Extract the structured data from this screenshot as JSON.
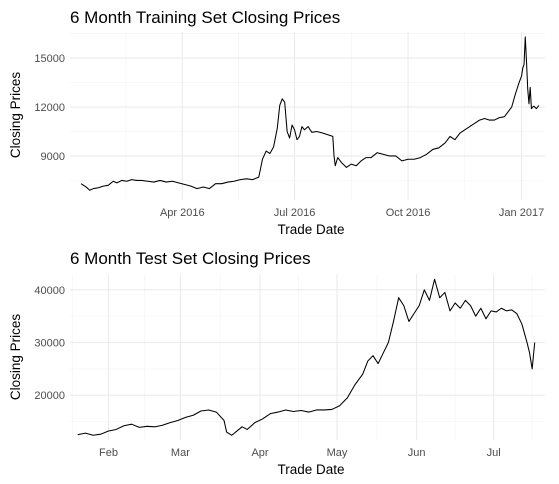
{
  "chart_data": [
    {
      "type": "line",
      "title": "6 Month Training Set Closing Prices",
      "xlabel": "Trade Date",
      "ylabel": "Closing Prices",
      "xlim": [
        "2016-01-01",
        "2017-01-20"
      ],
      "ylim": [
        6300,
        16600
      ],
      "x_ticks": [
        {
          "date": "2016-04-01",
          "label": "Apr 2016"
        },
        {
          "date": "2016-07-01",
          "label": "Jul 2016"
        },
        {
          "date": "2016-10-01",
          "label": "Oct 2016"
        },
        {
          "date": "2017-01-01",
          "label": "Jan 2017"
        }
      ],
      "y_ticks": [
        {
          "value": 9000,
          "label": "9000"
        },
        {
          "value": 12000,
          "label": "12000"
        },
        {
          "value": 15000,
          "label": "15000"
        }
      ],
      "grid": true,
      "x": [
        "2016-01-10",
        "2016-01-14",
        "2016-01-17",
        "2016-01-20",
        "2016-01-24",
        "2016-01-28",
        "2016-02-01",
        "2016-02-05",
        "2016-02-08",
        "2016-02-12",
        "2016-02-16",
        "2016-02-20",
        "2016-02-24",
        "2016-02-28",
        "2016-03-04",
        "2016-03-09",
        "2016-03-14",
        "2016-03-19",
        "2016-03-24",
        "2016-03-29",
        "2016-04-03",
        "2016-04-08",
        "2016-04-13",
        "2016-04-18",
        "2016-04-23",
        "2016-04-28",
        "2016-05-03",
        "2016-05-08",
        "2016-05-13",
        "2016-05-18",
        "2016-05-23",
        "2016-05-28",
        "2016-06-02",
        "2016-06-05",
        "2016-06-08",
        "2016-06-11",
        "2016-06-14",
        "2016-06-17",
        "2016-06-19",
        "2016-06-21",
        "2016-06-23",
        "2016-06-25",
        "2016-06-27",
        "2016-06-29",
        "2016-07-01",
        "2016-07-03",
        "2016-07-05",
        "2016-07-07",
        "2016-07-09",
        "2016-07-12",
        "2016-07-15",
        "2016-07-19",
        "2016-07-24",
        "2016-07-28",
        "2016-08-01",
        "2016-08-02",
        "2016-08-03",
        "2016-08-05",
        "2016-08-08",
        "2016-08-12",
        "2016-08-16",
        "2016-08-20",
        "2016-08-24",
        "2016-08-28",
        "2016-09-01",
        "2016-09-06",
        "2016-09-11",
        "2016-09-16",
        "2016-09-21",
        "2016-09-26",
        "2016-10-01",
        "2016-10-06",
        "2016-10-11",
        "2016-10-16",
        "2016-10-21",
        "2016-10-26",
        "2016-10-31",
        "2016-11-04",
        "2016-11-08",
        "2016-11-12",
        "2016-11-16",
        "2016-11-20",
        "2016-11-24",
        "2016-11-28",
        "2016-12-02",
        "2016-12-06",
        "2016-12-10",
        "2016-12-14",
        "2016-12-18",
        "2016-12-21",
        "2016-12-24",
        "2016-12-27",
        "2016-12-30",
        "2017-01-01",
        "2017-01-02",
        "2017-01-03",
        "2017-01-04",
        "2017-01-05",
        "2017-01-06",
        "2017-01-07",
        "2017-01-08",
        "2017-01-09",
        "2017-01-10",
        "2017-01-11",
        "2017-01-13",
        "2017-01-15"
      ],
      "values": [
        7300,
        7100,
        6900,
        7000,
        7050,
        7150,
        7200,
        7450,
        7350,
        7500,
        7450,
        7550,
        7500,
        7500,
        7450,
        7400,
        7500,
        7400,
        7450,
        7350,
        7250,
        7150,
        7000,
        7100,
        7000,
        7300,
        7300,
        7400,
        7450,
        7550,
        7600,
        7550,
        7700,
        8800,
        9300,
        9150,
        9550,
        10700,
        12100,
        12500,
        12300,
        10500,
        10100,
        10900,
        10600,
        10000,
        10200,
        10800,
        10600,
        10800,
        10450,
        10500,
        10400,
        10300,
        10200,
        9000,
        8400,
        8900,
        8600,
        8300,
        8500,
        8400,
        8700,
        8900,
        8900,
        9200,
        9100,
        9000,
        9000,
        8700,
        8800,
        8800,
        8900,
        9100,
        9400,
        9500,
        9800,
        10200,
        10000,
        10400,
        10600,
        10800,
        11000,
        11200,
        11300,
        11200,
        11200,
        11350,
        11400,
        11700,
        12000,
        12800,
        13500,
        13900,
        14400,
        14600,
        16300,
        14800,
        13100,
        12200,
        13200,
        11900,
        12000,
        12050,
        11900,
        12100
      ]
    },
    {
      "type": "line",
      "title": "6 Month Test Set Closing Prices",
      "xlabel": "Trade Date",
      "ylabel": "Closing Prices",
      "xlim": [
        "2017-01-17",
        "2017-07-21"
      ],
      "ylim": [
        11500,
        43000
      ],
      "x_ticks": [
        {
          "date": "2017-02-01",
          "label": "Feb"
        },
        {
          "date": "2017-03-01",
          "label": "Mar"
        },
        {
          "date": "2017-04-01",
          "label": "Apr"
        },
        {
          "date": "2017-05-01",
          "label": "May"
        },
        {
          "date": "2017-06-01",
          "label": "Jun"
        },
        {
          "date": "2017-07-01",
          "label": "Jul"
        }
      ],
      "y_ticks": [
        {
          "value": 20000,
          "label": "20000"
        },
        {
          "value": 30000,
          "label": "30000"
        },
        {
          "value": 40000,
          "label": "40000"
        }
      ],
      "grid": true,
      "x": [
        "2017-01-20",
        "2017-01-23",
        "2017-01-26",
        "2017-01-29",
        "2017-02-01",
        "2017-02-04",
        "2017-02-07",
        "2017-02-10",
        "2017-02-13",
        "2017-02-16",
        "2017-02-19",
        "2017-02-22",
        "2017-02-25",
        "2017-02-28",
        "2017-03-03",
        "2017-03-06",
        "2017-03-09",
        "2017-03-12",
        "2017-03-15",
        "2017-03-18",
        "2017-03-19",
        "2017-03-21",
        "2017-03-23",
        "2017-03-25",
        "2017-03-27",
        "2017-03-30",
        "2017-04-02",
        "2017-04-05",
        "2017-04-08",
        "2017-04-11",
        "2017-04-14",
        "2017-04-17",
        "2017-04-20",
        "2017-04-23",
        "2017-04-26",
        "2017-04-29",
        "2017-05-02",
        "2017-05-05",
        "2017-05-08",
        "2017-05-11",
        "2017-05-13",
        "2017-05-15",
        "2017-05-17",
        "2017-05-19",
        "2017-05-21",
        "2017-05-23",
        "2017-05-25",
        "2017-05-27",
        "2017-05-29",
        "2017-05-31",
        "2017-06-02",
        "2017-06-04",
        "2017-06-06",
        "2017-06-08",
        "2017-06-10",
        "2017-06-12",
        "2017-06-14",
        "2017-06-16",
        "2017-06-18",
        "2017-06-20",
        "2017-06-22",
        "2017-06-24",
        "2017-06-26",
        "2017-06-28",
        "2017-06-30",
        "2017-07-02",
        "2017-07-04",
        "2017-07-06",
        "2017-07-08",
        "2017-07-10",
        "2017-07-12",
        "2017-07-14",
        "2017-07-15",
        "2017-07-16",
        "2017-07-17"
      ],
      "values": [
        12500,
        12800,
        12400,
        12600,
        13200,
        13500,
        14200,
        14500,
        13900,
        14100,
        14000,
        14300,
        14800,
        15200,
        15800,
        16200,
        17000,
        17200,
        16800,
        15200,
        13000,
        12400,
        13200,
        14000,
        13500,
        14800,
        15500,
        16500,
        16800,
        17200,
        16900,
        17100,
        16800,
        17200,
        17200,
        17300,
        18000,
        19500,
        22000,
        24000,
        26500,
        27500,
        26000,
        28000,
        30000,
        34000,
        38500,
        37000,
        34000,
        35500,
        37000,
        40000,
        38000,
        42000,
        38500,
        39500,
        36000,
        37500,
        36500,
        38000,
        37000,
        35000,
        36500,
        34500,
        36000,
        35800,
        36500,
        36000,
        36200,
        35500,
        33500,
        30000,
        28000,
        25000,
        30000
      ]
    }
  ]
}
